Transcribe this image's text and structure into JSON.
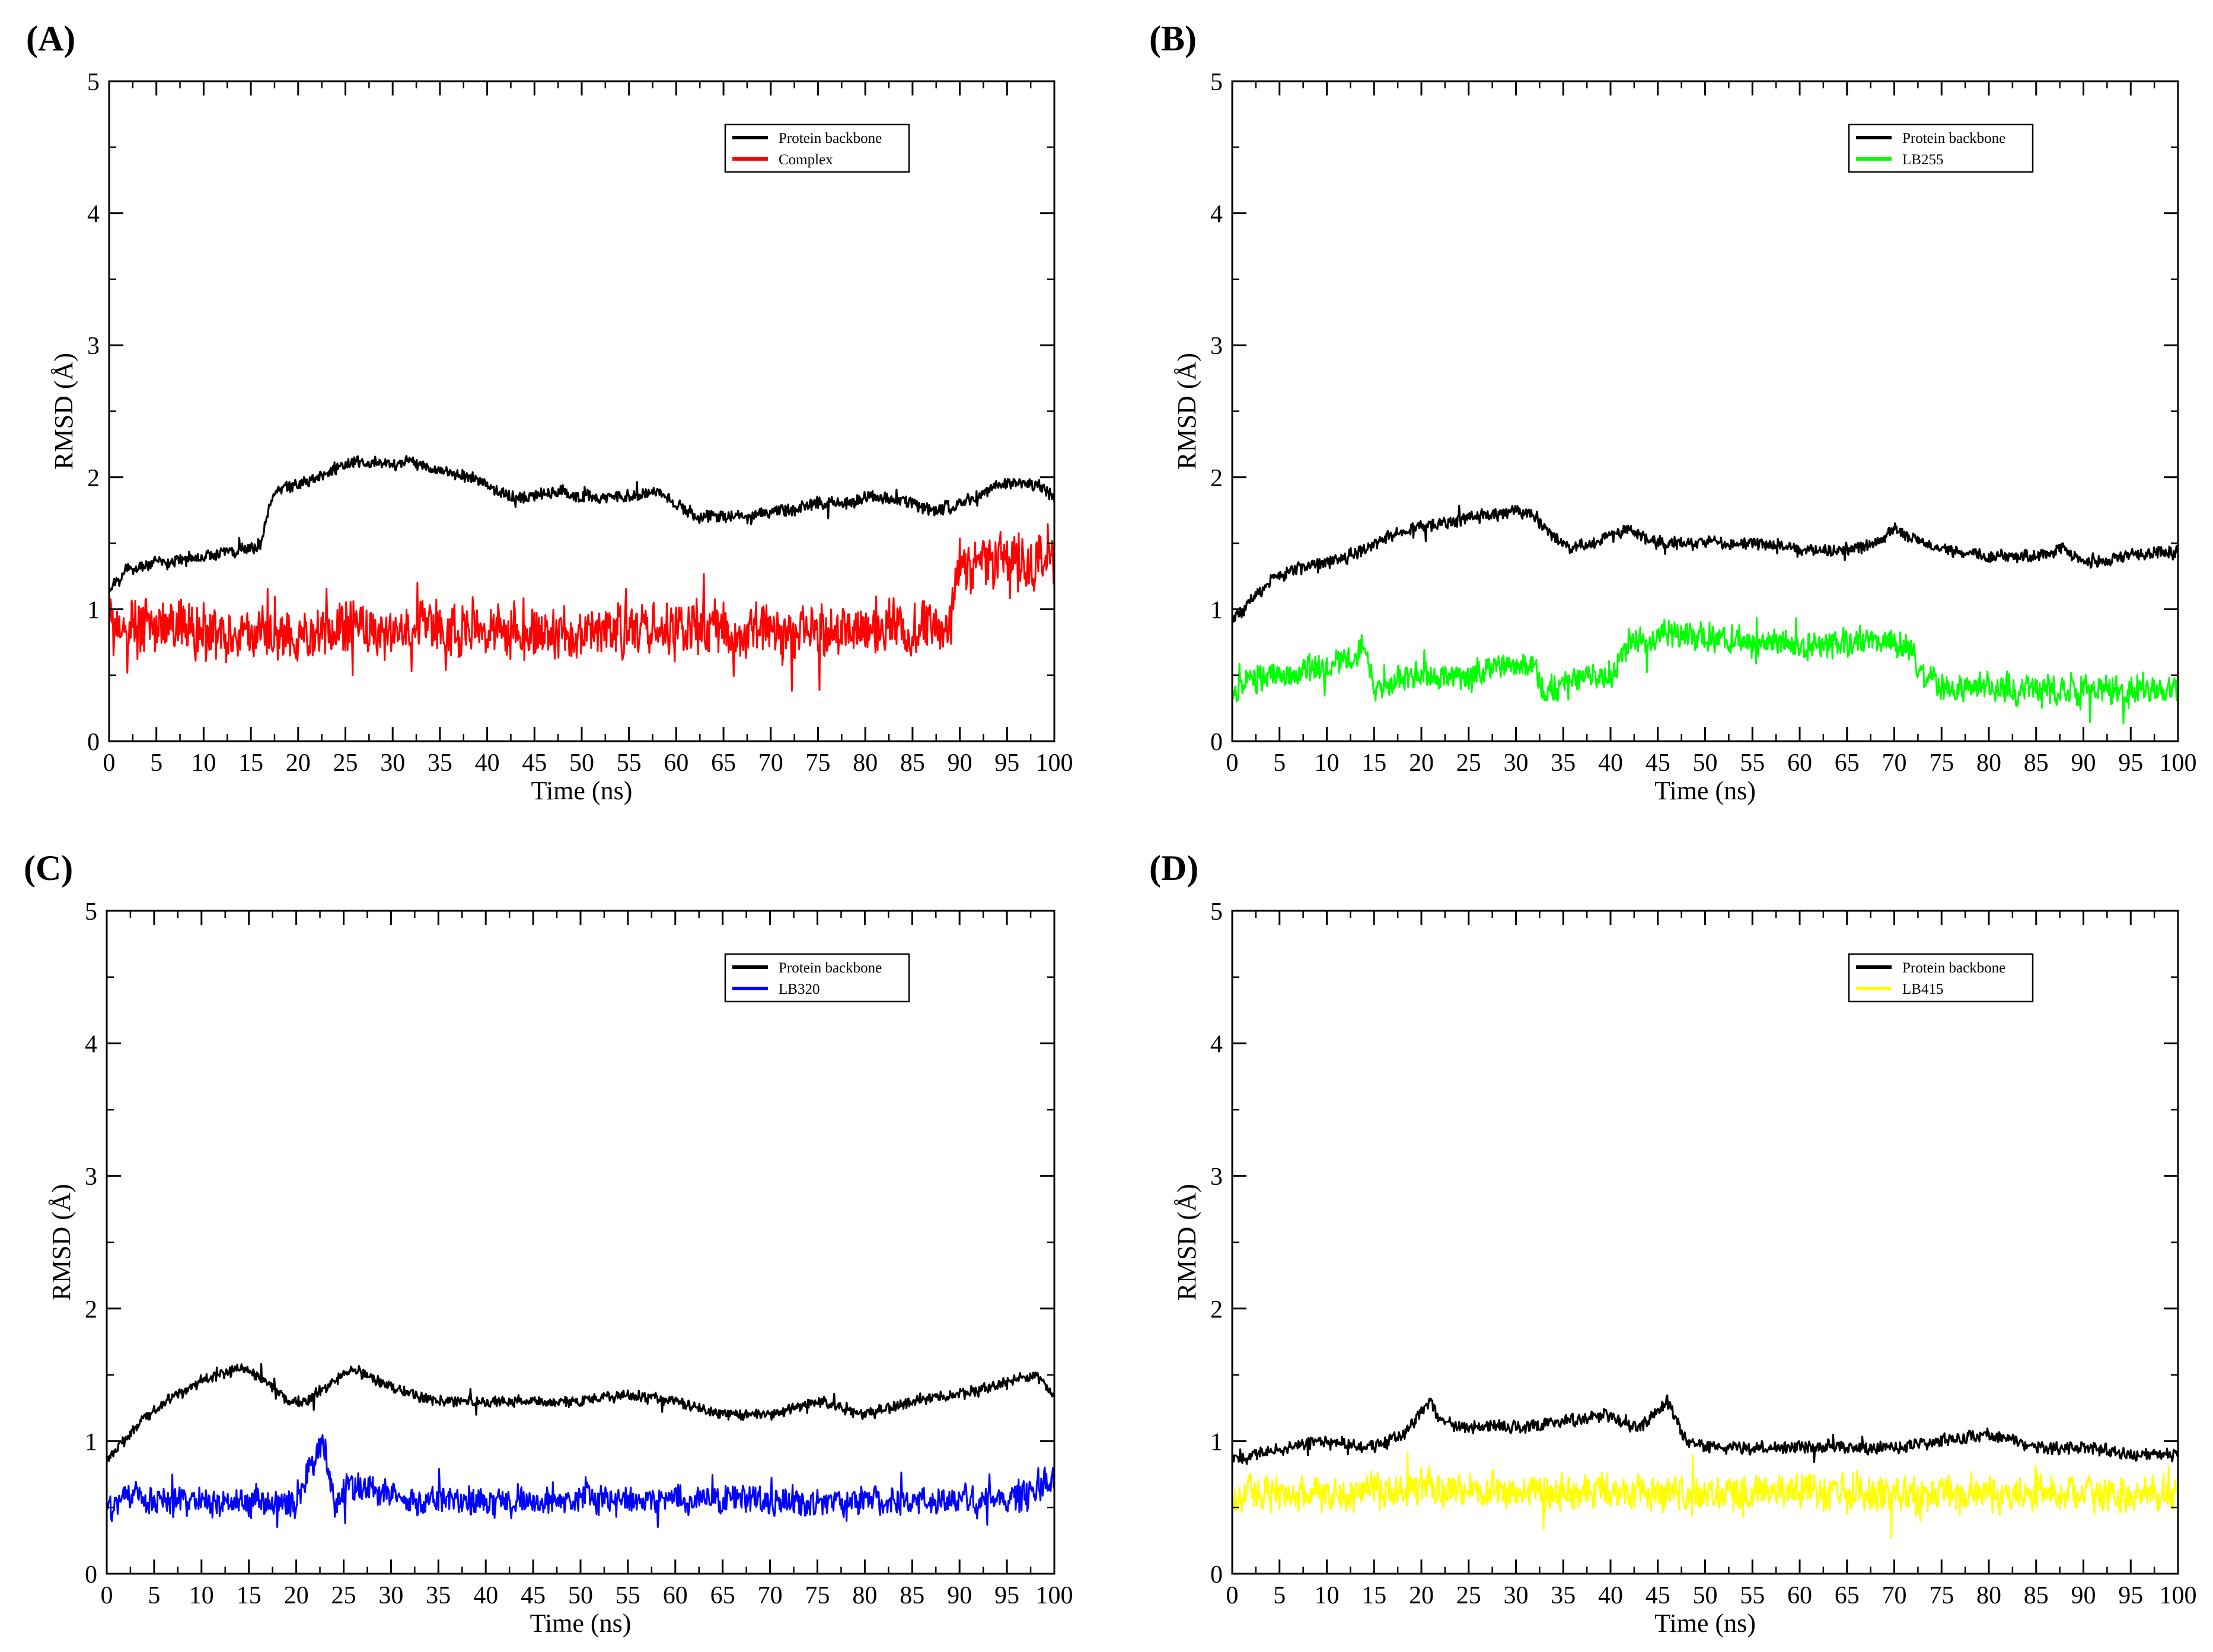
{
  "chart_data": [
    {
      "type": "line",
      "panel_label": "(A)",
      "xlabel": "Time (ns)",
      "ylabel": "RMSD (Å)",
      "xlim": [
        0,
        100
      ],
      "ylim": [
        0,
        5
      ],
      "xticks": [
        "0",
        "5",
        "10",
        "15",
        "20",
        "25",
        "30",
        "35",
        "40",
        "45",
        "50",
        "55",
        "60",
        "65",
        "70",
        "75",
        "80",
        "85",
        "90",
        "95",
        "100"
      ],
      "yticks": [
        "0",
        "1",
        "2",
        "3",
        "4",
        "5"
      ],
      "legend_position": "top-right",
      "series": [
        {
          "name": "Protein backbone",
          "color": "#000000",
          "noise": 0.07,
          "x": [
            0,
            2,
            4,
            6,
            8,
            10,
            12,
            14,
            15,
            16,
            17,
            18,
            20,
            22,
            25,
            28,
            30,
            32,
            35,
            38,
            40,
            42,
            45,
            48,
            50,
            52,
            55,
            58,
            60,
            62,
            65,
            68,
            70,
            72,
            75,
            78,
            80,
            82,
            85,
            88,
            90,
            92,
            94,
            96,
            98,
            100
          ],
          "y": [
            1.15,
            1.3,
            1.35,
            1.35,
            1.38,
            1.4,
            1.42,
            1.45,
            1.45,
            1.5,
            1.8,
            1.9,
            1.95,
            2.0,
            2.1,
            2.1,
            2.1,
            2.1,
            2.05,
            2.0,
            1.95,
            1.85,
            1.85,
            1.9,
            1.85,
            1.85,
            1.85,
            1.9,
            1.8,
            1.7,
            1.7,
            1.7,
            1.75,
            1.75,
            1.8,
            1.8,
            1.85,
            1.85,
            1.8,
            1.75,
            1.8,
            1.85,
            1.95,
            1.95,
            1.95,
            1.85
          ]
        },
        {
          "name": "Complex",
          "color": "#ff0000",
          "noise": 0.3,
          "x": [
            0,
            10,
            20,
            30,
            40,
            50,
            60,
            70,
            80,
            89,
            89.5,
            90,
            95,
            100
          ],
          "y": [
            0.85,
            0.85,
            0.8,
            0.85,
            0.85,
            0.82,
            0.85,
            0.85,
            0.85,
            0.85,
            1.2,
            1.35,
            1.38,
            1.4
          ]
        }
      ]
    },
    {
      "type": "line",
      "panel_label": "(B)",
      "xlabel": "Time (ns)",
      "ylabel": "RMSD (Å)",
      "xlim": [
        0,
        100
      ],
      "ylim": [
        0,
        5
      ],
      "xticks": [
        "0",
        "5",
        "10",
        "15",
        "20",
        "25",
        "30",
        "35",
        "40",
        "45",
        "50",
        "55",
        "60",
        "65",
        "70",
        "75",
        "80",
        "85",
        "90",
        "95",
        "100"
      ],
      "yticks": [
        "0",
        "1",
        "2",
        "3",
        "4",
        "5"
      ],
      "legend_position": "top-right",
      "series": [
        {
          "name": "Protein backbone",
          "color": "#000000",
          "noise": 0.07,
          "x": [
            0,
            3,
            6,
            10,
            14,
            18,
            22,
            26,
            30,
            32,
            34,
            36,
            40,
            42,
            45,
            50,
            55,
            60,
            65,
            68,
            70,
            72,
            75,
            80,
            85,
            88,
            90,
            95,
            100
          ],
          "y": [
            0.9,
            1.15,
            1.3,
            1.35,
            1.45,
            1.6,
            1.65,
            1.7,
            1.75,
            1.7,
            1.55,
            1.45,
            1.55,
            1.6,
            1.5,
            1.5,
            1.5,
            1.45,
            1.45,
            1.5,
            1.6,
            1.55,
            1.45,
            1.4,
            1.4,
            1.45,
            1.35,
            1.4,
            1.45
          ]
        },
        {
          "name": "LB255",
          "color": "#00ff00",
          "noise": 0.16,
          "x": [
            0,
            5,
            10,
            14,
            15,
            20,
            25,
            30,
            32,
            33,
            35,
            40,
            42,
            45,
            50,
            55,
            60,
            65,
            70,
            72,
            73,
            75,
            80,
            85,
            90,
            95,
            100
          ],
          "y": [
            0.4,
            0.5,
            0.55,
            0.7,
            0.4,
            0.5,
            0.5,
            0.6,
            0.55,
            0.35,
            0.45,
            0.5,
            0.75,
            0.8,
            0.8,
            0.75,
            0.7,
            0.75,
            0.75,
            0.65,
            0.5,
            0.4,
            0.4,
            0.38,
            0.4,
            0.38,
            0.4
          ]
        }
      ]
    },
    {
      "type": "line",
      "panel_label": "(C)",
      "xlabel": "Time (ns)",
      "ylabel": "RMSD (Å)",
      "xlim": [
        0,
        100
      ],
      "ylim": [
        0,
        5
      ],
      "xticks": [
        "0",
        "5",
        "10",
        "15",
        "20",
        "25",
        "30",
        "35",
        "40",
        "45",
        "50",
        "55",
        "60",
        "65",
        "70",
        "75",
        "80",
        "85",
        "90",
        "95",
        "100"
      ],
      "yticks": [
        "0",
        "1",
        "2",
        "3",
        "4",
        "5"
      ],
      "legend_position": "top-right",
      "series": [
        {
          "name": "Protein backbone",
          "color": "#000000",
          "noise": 0.06,
          "x": [
            0,
            3,
            6,
            10,
            14,
            17,
            19,
            21,
            23,
            26,
            30,
            35,
            40,
            45,
            50,
            55,
            60,
            65,
            70,
            75,
            80,
            85,
            90,
            95,
            98,
            100
          ],
          "y": [
            0.85,
            1.1,
            1.3,
            1.45,
            1.55,
            1.45,
            1.3,
            1.3,
            1.4,
            1.55,
            1.4,
            1.3,
            1.3,
            1.3,
            1.3,
            1.35,
            1.3,
            1.2,
            1.2,
            1.3,
            1.2,
            1.3,
            1.35,
            1.45,
            1.5,
            1.35
          ]
        },
        {
          "name": "LB320",
          "color": "#0000ff",
          "noise": 0.16,
          "x": [
            0,
            3,
            5,
            10,
            15,
            20,
            22,
            23,
            24,
            25,
            30,
            32,
            40,
            50,
            60,
            65,
            66,
            67,
            70,
            80,
            90,
            95,
            97,
            98,
            100
          ],
          "y": [
            0.5,
            0.6,
            0.55,
            0.55,
            0.55,
            0.5,
            0.9,
            0.95,
            0.5,
            0.65,
            0.6,
            0.55,
            0.55,
            0.55,
            0.55,
            0.55,
            0.6,
            0.55,
            0.55,
            0.55,
            0.55,
            0.55,
            0.6,
            0.65,
            0.7
          ]
        }
      ]
    },
    {
      "type": "line",
      "panel_label": "(D)",
      "xlabel": "Time (ns)",
      "ylabel": "RMSD (Å)",
      "xlim": [
        0,
        100
      ],
      "ylim": [
        0,
        5
      ],
      "xticks": [
        "0",
        "5",
        "10",
        "15",
        "20",
        "25",
        "30",
        "35",
        "40",
        "45",
        "50",
        "55",
        "60",
        "65",
        "70",
        "75",
        "80",
        "85",
        "90",
        "95",
        "100"
      ],
      "yticks": [
        "0",
        "1",
        "2",
        "3",
        "4",
        "5"
      ],
      "legend_position": "top-right",
      "series": [
        {
          "name": "Protein backbone",
          "color": "#000000",
          "noise": 0.07,
          "x": [
            0,
            5,
            10,
            15,
            18,
            21,
            22,
            25,
            30,
            35,
            40,
            43,
            46,
            48,
            50,
            55,
            60,
            65,
            70,
            75,
            80,
            85,
            90,
            95,
            100
          ],
          "y": [
            0.85,
            0.95,
            1.0,
            0.95,
            1.05,
            1.3,
            1.15,
            1.1,
            1.1,
            1.15,
            1.2,
            1.1,
            1.3,
            1.0,
            0.95,
            0.95,
            0.95,
            0.95,
            0.95,
            1.0,
            1.05,
            0.95,
            0.95,
            0.9,
            0.9
          ]
        },
        {
          "name": "LB415",
          "color": "#ffff00",
          "noise": 0.2,
          "x": [
            0,
            10,
            20,
            30,
            40,
            50,
            60,
            70,
            80,
            90,
            100
          ],
          "y": [
            0.6,
            0.6,
            0.65,
            0.62,
            0.62,
            0.6,
            0.62,
            0.6,
            0.62,
            0.6,
            0.6
          ]
        }
      ]
    }
  ]
}
